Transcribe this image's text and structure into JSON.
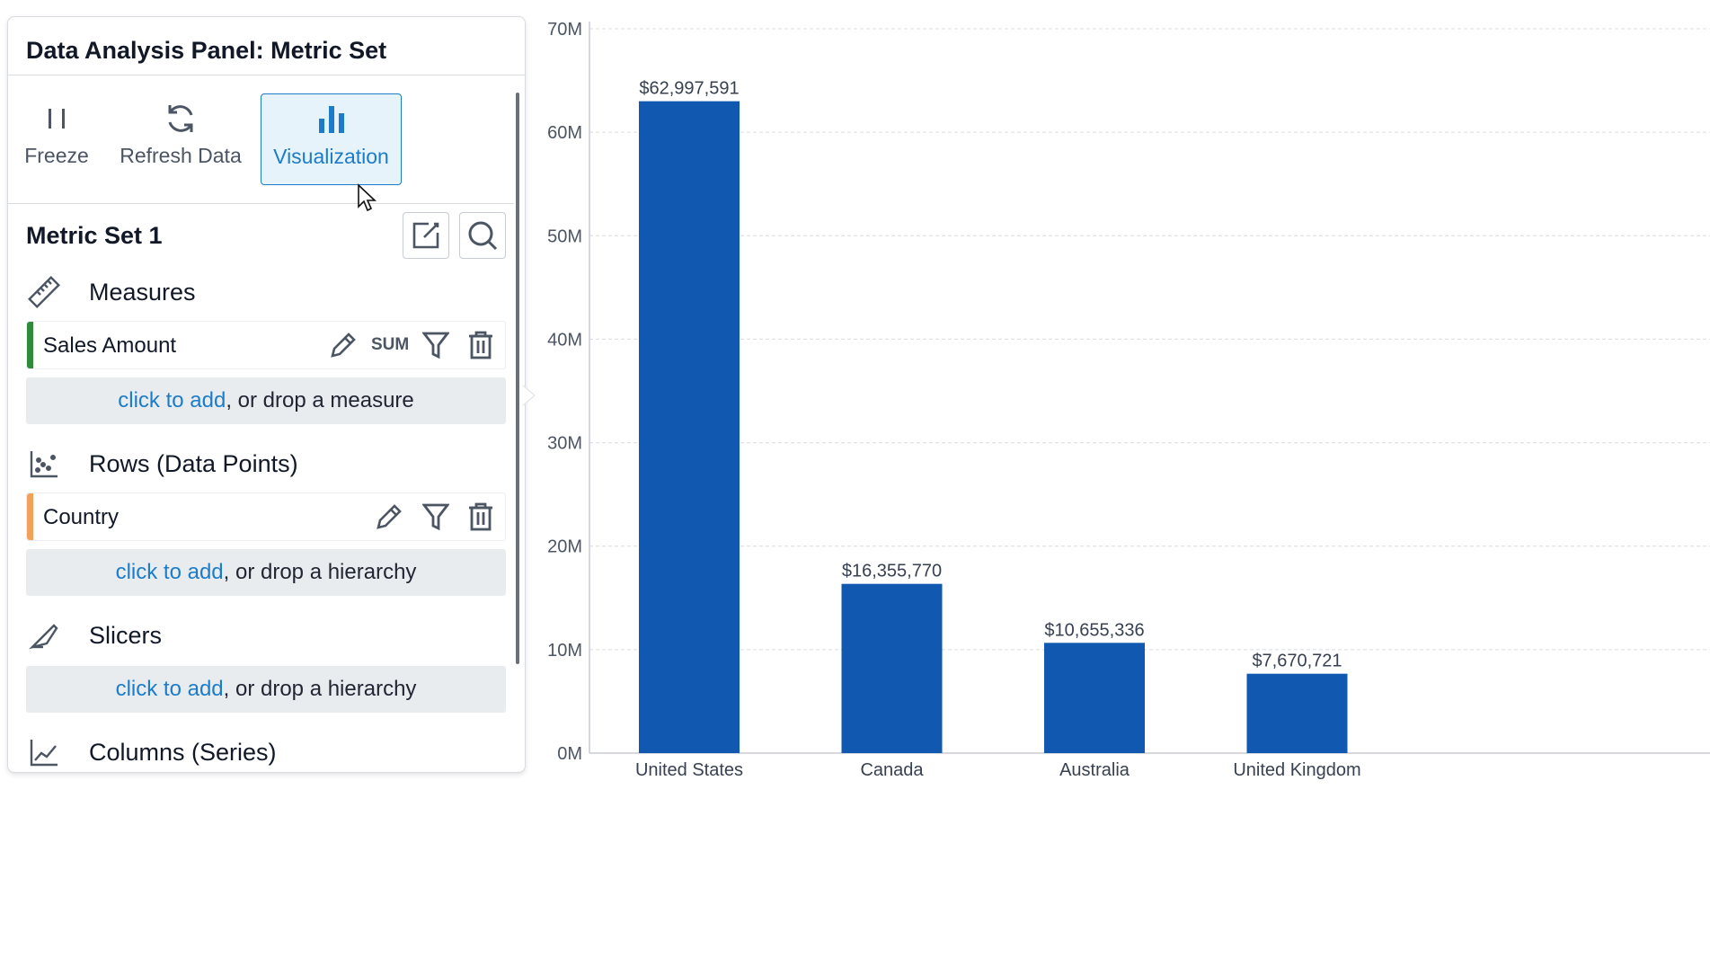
{
  "panel": {
    "title": "Data Analysis Panel: Metric Set",
    "toolbar": {
      "freeze": {
        "label": "Freeze",
        "icon": "pause-icon"
      },
      "refresh": {
        "label": "Refresh Data",
        "icon": "refresh-icon"
      },
      "visualization": {
        "label": "Visualization",
        "icon": "bar-chart-icon"
      }
    },
    "metric_set": {
      "title": "Metric Set 1"
    },
    "measures": {
      "label": "Measures",
      "fields": [
        {
          "name": "Sales Amount",
          "aggregate": "SUM",
          "color": "#2e8b3a"
        }
      ],
      "drop": {
        "link": "click to add",
        "text": ", or drop a measure"
      }
    },
    "rows": {
      "label": "Rows (Data Points)",
      "fields": [
        {
          "name": "Country",
          "color": "#f2a15a"
        }
      ],
      "drop": {
        "link": "click to add",
        "text": ", or drop a hierarchy"
      }
    },
    "slicers": {
      "label": "Slicers",
      "drop": {
        "link": "click to add",
        "text": ", or drop a hierarchy"
      }
    },
    "columns": {
      "label": "Columns (Series)"
    }
  },
  "colors": {
    "accent": "#1c7cc9",
    "bar": "#1158b0"
  },
  "chart_data": {
    "type": "bar",
    "categories": [
      "United States",
      "Canada",
      "Australia",
      "United Kingdom"
    ],
    "values": [
      62997591,
      16355770,
      10655336,
      7670721
    ],
    "data_labels": [
      "$62,997,591",
      "$16,355,770",
      "$10,655,336",
      "$7,670,721"
    ],
    "yticks": [
      "0M",
      "10M",
      "20M",
      "30M",
      "40M",
      "50M",
      "60M",
      "70M"
    ],
    "ylim": [
      0,
      70000000
    ],
    "grid": true,
    "legend": "none"
  }
}
